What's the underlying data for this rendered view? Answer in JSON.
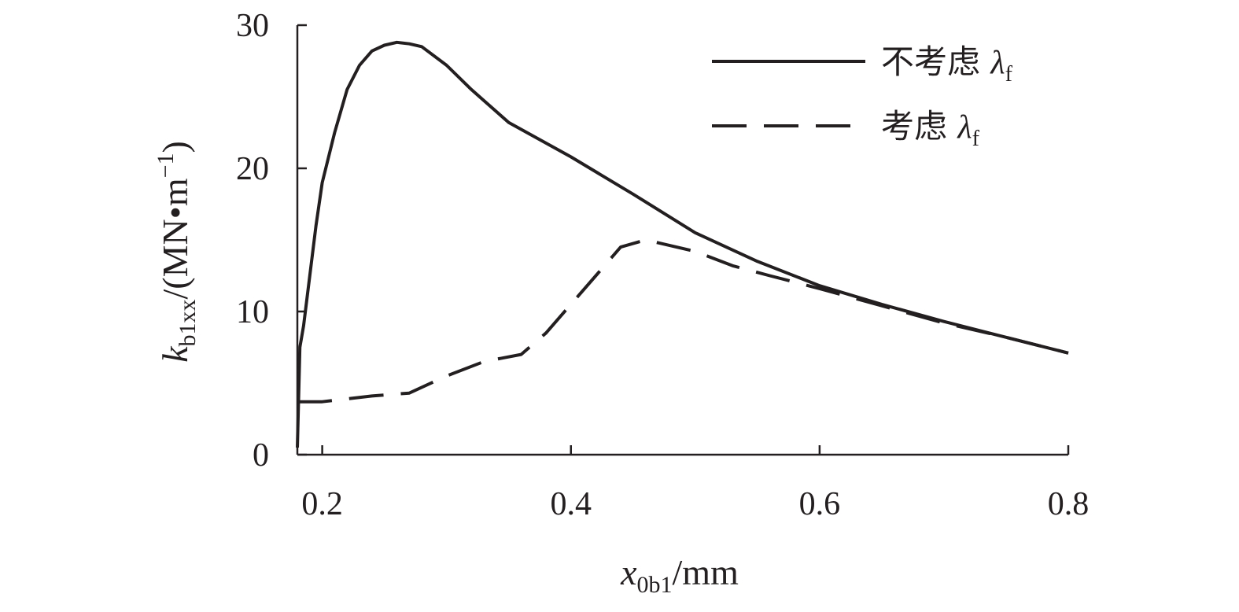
{
  "chart_data": {
    "type": "line",
    "title": "",
    "xlabel": {
      "main": "x",
      "sub": "0b1",
      "unit": "/mm"
    },
    "ylabel": {
      "main": "k",
      "sub": "b1xx",
      "unit": "/(MN•m",
      "sup": "−1",
      "close": ")"
    },
    "xlim": [
      0.18,
      0.8
    ],
    "ylim": [
      0,
      30
    ],
    "x_ticks": [
      0.2,
      0.4,
      0.6,
      0.8
    ],
    "x_tick_labels": [
      "0.2",
      "0.4",
      "0.6",
      "0.8"
    ],
    "y_ticks": [
      0,
      10,
      20,
      30
    ],
    "y_tick_labels": [
      "0",
      "10",
      "20",
      "30"
    ],
    "grid": false,
    "legend_position": "top-right",
    "series": [
      {
        "name": {
          "text": "不考虑 ",
          "sym": "λ",
          "sub": "f"
        },
        "style": "solid",
        "x": [
          0.18,
          0.182,
          0.185,
          0.19,
          0.195,
          0.2,
          0.21,
          0.22,
          0.23,
          0.24,
          0.25,
          0.26,
          0.27,
          0.28,
          0.3,
          0.32,
          0.35,
          0.4,
          0.45,
          0.5,
          0.55,
          0.6,
          0.65,
          0.7,
          0.75,
          0.8
        ],
        "y": [
          0.5,
          7.5,
          9.0,
          12.5,
          16.0,
          19.0,
          22.5,
          25.5,
          27.2,
          28.2,
          28.6,
          28.8,
          28.7,
          28.5,
          27.2,
          25.5,
          23.2,
          20.8,
          18.2,
          15.5,
          13.5,
          11.8,
          10.5,
          9.3,
          8.2,
          7.1
        ]
      },
      {
        "name": {
          "text": "考虑 ",
          "sym": "λ",
          "sub": "f"
        },
        "style": "dashed",
        "x": [
          0.18,
          0.2,
          0.24,
          0.27,
          0.3,
          0.33,
          0.36,
          0.38,
          0.4,
          0.42,
          0.44,
          0.46,
          0.47,
          0.5,
          0.53,
          0.56,
          0.6,
          0.65,
          0.7,
          0.75,
          0.8
        ],
        "y": [
          3.7,
          3.7,
          4.1,
          4.3,
          5.5,
          6.5,
          7.0,
          8.5,
          10.5,
          12.5,
          14.5,
          15.0,
          14.8,
          14.2,
          13.2,
          12.5,
          11.6,
          10.4,
          9.2,
          8.2,
          7.1
        ]
      }
    ]
  }
}
